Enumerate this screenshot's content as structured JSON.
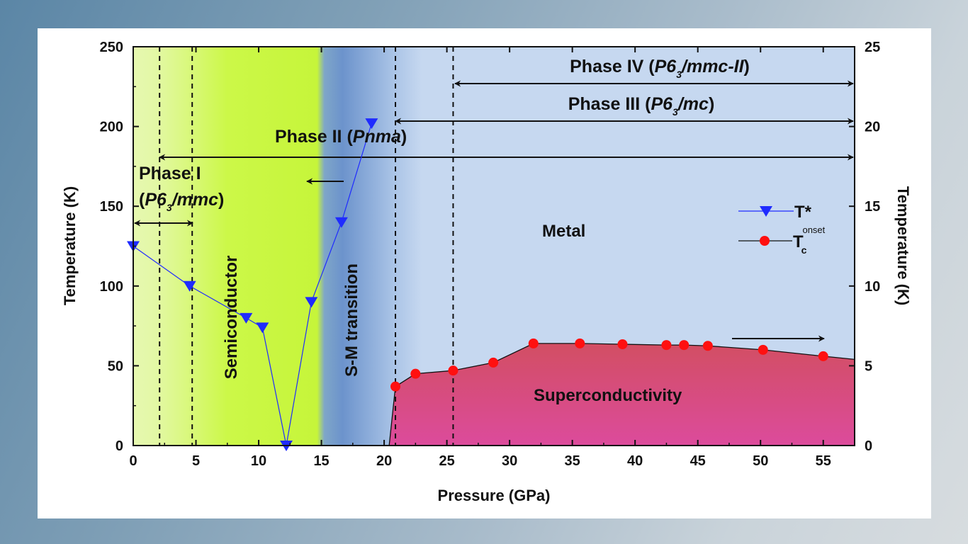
{
  "chart_data": {
    "type": "line",
    "xlabel": "Pressure (GPa)",
    "ylabel": "Temperature (K)",
    "ylabel_right": "Temperature (K)",
    "xlim": [
      0,
      57.5
    ],
    "ylim": [
      0,
      250
    ],
    "ylim_right": [
      0,
      25
    ],
    "x_ticks": [
      "0",
      "5",
      "10",
      "15",
      "20",
      "25",
      "30",
      "35",
      "40",
      "45",
      "50",
      "55"
    ],
    "y_ticks": [
      "0",
      "50",
      "100",
      "150",
      "200",
      "250"
    ],
    "y_ticks_right": [
      "0",
      "5",
      "10",
      "15",
      "20",
      "25"
    ],
    "series": [
      {
        "name": "T*",
        "axis": "left",
        "color": "#1f2bff",
        "marker": "down-triangle",
        "x": [
          0,
          4.5,
          9,
          10.3,
          12.2,
          14.2,
          16.6,
          19.0
        ],
        "y": [
          125,
          100,
          80,
          74,
          0,
          90,
          140,
          202
        ]
      },
      {
        "name_prefix": "T",
        "name_sub": "c",
        "name_sup": "onset",
        "axis": "right",
        "color": "#ff1010",
        "marker": "circle",
        "x": [
          20.9,
          22.5,
          25.5,
          28.7,
          31.9,
          35.6,
          39.0,
          42.5,
          43.9,
          45.8,
          50.2,
          55.0,
          57.5
        ],
        "y": [
          3.7,
          4.5,
          4.7,
          5.2,
          6.4,
          6.4,
          6.35,
          6.3,
          6.3,
          6.25,
          6.0,
          5.6,
          5.4
        ]
      }
    ],
    "dashed_lines_x": [
      2.1,
      4.7,
      20.9,
      25.5
    ],
    "annotations": {
      "phase4_a": "Phase IV (",
      "phase4_b": "P6",
      "phase4_sub": "3",
      "phase4_c": "/mmc-II",
      "phase4_d": ")",
      "phase3_a": "Phase III (",
      "phase3_b": "P6",
      "phase3_sub": "3",
      "phase3_c": "/mc",
      "phase3_d": ")",
      "phase2_a": "Phase II (",
      "phase2_b": "Pnma",
      "phase2_d": ")",
      "phase1_a": "Phase I",
      "phase1_b": "(",
      "phase1_c": "P6",
      "phase1_sub": "3",
      "phase1_e": "/mmc",
      "phase1_f": ")",
      "semiconductor": "Semiconductor",
      "sm_transition": "S-M transition",
      "metal": "Metal",
      "superconductivity": "Superconductivity"
    },
    "region_colors": {
      "phase1_light": "#e3f8a6",
      "semiconductor": "#c9fb3c",
      "transition": "#6f97cf",
      "metal": "#c6d8f0",
      "superconductivity_top": "#d24e63",
      "superconductivity_bottom": "#d94c97"
    }
  }
}
